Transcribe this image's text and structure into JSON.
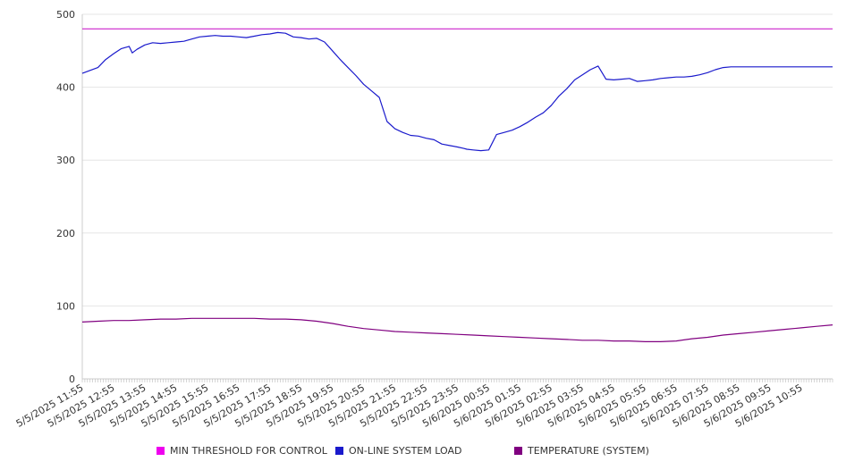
{
  "chart_data": {
    "type": "line",
    "title": "",
    "xlabel": "",
    "ylabel": "",
    "ylim": [
      0,
      500
    ],
    "y_ticks": [
      0,
      100,
      200,
      300,
      400,
      500
    ],
    "grid": true,
    "legend_position": "bottom",
    "x_tick_labels": [
      "5/5/2025 11:55",
      "5/5/2025 12:55",
      "5/5/2025 13:55",
      "5/5/2025 14:55",
      "5/5/2025 15:55",
      "5/5/2025 16:55",
      "5/5/2025 17:55",
      "5/5/2025 18:55",
      "5/5/2025 19:55",
      "5/5/2025 20:55",
      "5/5/2025 21:55",
      "5/5/2025 22:55",
      "5/5/2025 23:55",
      "5/6/2025 00:55",
      "5/6/2025 01:55",
      "5/6/2025 02:55",
      "5/6/2025 03:55",
      "5/6/2025 04:55",
      "5/6/2025 05:55",
      "5/6/2025 06:55",
      "5/6/2025 07:55",
      "5/6/2025 08:55",
      "5/6/2025 09:55",
      "5/6/2025 10:55"
    ],
    "series": [
      {
        "name": "MIN THRESHOLD FOR CONTROL",
        "color": "#cc22cc",
        "x": [
          0,
          24
        ],
        "values": [
          480,
          480
        ]
      },
      {
        "name": "ON-LINE SYSTEM LOAD",
        "color": "#1a1acc",
        "x": [
          0,
          0.25,
          0.5,
          0.75,
          1.0,
          1.25,
          1.5,
          1.6,
          1.75,
          2.0,
          2.25,
          2.5,
          2.75,
          3.0,
          3.25,
          3.5,
          3.75,
          4.0,
          4.25,
          4.5,
          4.75,
          5.0,
          5.25,
          5.5,
          5.75,
          6.0,
          6.25,
          6.5,
          6.75,
          7.0,
          7.25,
          7.5,
          7.75,
          8.0,
          8.25,
          8.5,
          8.75,
          9.0,
          9.25,
          9.5,
          9.75,
          10.0,
          10.25,
          10.5,
          10.75,
          11.0,
          11.25,
          11.5,
          11.75,
          12.0,
          12.2,
          12.3,
          12.5,
          12.75,
          13.0,
          13.25,
          13.5,
          13.75,
          14.0,
          14.25,
          14.5,
          14.75,
          15.0,
          15.25,
          15.5,
          15.75,
          16.0,
          16.25,
          16.5,
          16.75,
          17.0,
          17.25,
          17.5,
          17.75,
          18.0,
          18.25,
          18.5,
          18.75,
          19.0,
          19.25,
          19.5,
          19.75,
          20.0,
          20.25,
          20.5,
          20.75,
          21.0,
          21.25,
          21.5,
          21.75,
          22.0,
          22.25,
          22.5,
          22.75,
          23.0,
          23.25,
          23.5,
          23.75,
          24.0
        ],
        "values": [
          419,
          423,
          427,
          438,
          446,
          453,
          456,
          447,
          452,
          458,
          461,
          460,
          461,
          462,
          463,
          466,
          469,
          470,
          471,
          470,
          470,
          469,
          468,
          470,
          472,
          473,
          475,
          474,
          469,
          468,
          466,
          467,
          462,
          450,
          438,
          427,
          416,
          404,
          395,
          386,
          353,
          343,
          338,
          334,
          333,
          330,
          328,
          322,
          320,
          318,
          316,
          315,
          314,
          313,
          314,
          335,
          338,
          341,
          346,
          352,
          359,
          365,
          375,
          388,
          398,
          410,
          417,
          424,
          429,
          411,
          410,
          411,
          412,
          408,
          409,
          410,
          412,
          413,
          414,
          414,
          415,
          417,
          420,
          424,
          427,
          428,
          428,
          428,
          428,
          428,
          428,
          428,
          428,
          428,
          428,
          428,
          428,
          428,
          428
        ]
      },
      {
        "name": "TEMPERATURE (SYSTEM)",
        "color": "#800080",
        "x": [
          0,
          0.5,
          1.0,
          1.5,
          2.0,
          2.5,
          3.0,
          3.5,
          4.0,
          4.5,
          5.0,
          5.5,
          6.0,
          6.5,
          7.0,
          7.5,
          8.0,
          8.5,
          9.0,
          9.5,
          10.0,
          10.5,
          11.0,
          11.5,
          12.0,
          12.5,
          13.0,
          13.5,
          14.0,
          14.5,
          15.0,
          15.5,
          16.0,
          16.5,
          17.0,
          17.5,
          18.0,
          18.5,
          19.0,
          19.5,
          20.0,
          20.5,
          21.0,
          21.5,
          22.0,
          22.5,
          23.0,
          23.5,
          24.0
        ],
        "values": [
          78,
          79,
          80,
          80,
          81,
          82,
          82,
          83,
          83,
          83,
          83,
          83,
          82,
          82,
          81,
          79,
          76,
          72,
          69,
          67,
          65,
          64,
          63,
          62,
          61,
          60,
          59,
          58,
          57,
          56,
          55,
          54,
          53,
          53,
          52,
          52,
          51,
          51,
          52,
          55,
          57,
          60,
          62,
          64,
          66,
          68,
          70,
          72,
          74
        ]
      }
    ]
  }
}
